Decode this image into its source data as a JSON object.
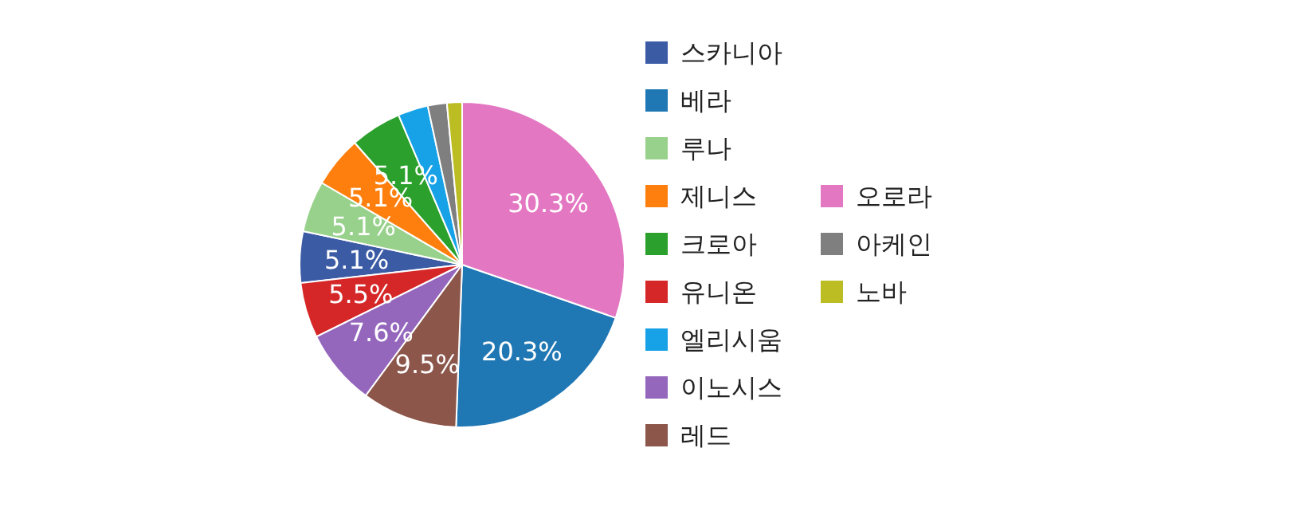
{
  "chart_data": {
    "type": "pie",
    "categories": [
      "스카니아",
      "베라",
      "루나",
      "제니스",
      "크로아",
      "유니온",
      "엘리시움",
      "이노시스",
      "레드",
      "오로라",
      "아케인",
      "노바"
    ],
    "values": [
      5.1,
      20.3,
      5.1,
      5.1,
      5.1,
      5.5,
      3.0,
      7.6,
      9.5,
      30.3,
      1.9,
      1.5
    ],
    "colors": [
      "#3b5ba5",
      "#1f77b4",
      "#98d18b",
      "#ff7f0e",
      "#2ca02c",
      "#d62728",
      "#17a2e8",
      "#9467bd",
      "#8c564b",
      "#e377c2",
      "#7f7f7f",
      "#bcbd22"
    ],
    "value_labels": [
      "5.1%",
      "20.3%",
      "5.1%",
      "5.1%",
      "5.1%",
      "5.5%",
      null,
      "7.6%",
      "9.5%",
      "30.3%",
      null,
      null
    ],
    "legend": "right"
  }
}
